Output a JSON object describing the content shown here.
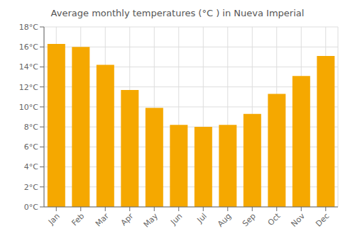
{
  "chart_data": {
    "type": "bar",
    "title": "Average monthly temperatures (°C ) in Nueva Imperial",
    "categories": [
      "Jan",
      "Feb",
      "Mar",
      "Apr",
      "May",
      "Jun",
      "Jul",
      "Aug",
      "Sep",
      "Oct",
      "Nov",
      "Dec"
    ],
    "values": [
      16.3,
      16.0,
      14.2,
      11.7,
      9.9,
      8.2,
      8.0,
      8.2,
      9.3,
      11.3,
      13.1,
      15.1
    ],
    "color": "#F5A800",
    "ylim": [
      0,
      18
    ],
    "yticks": [
      {
        "value": 0,
        "label": "0°C"
      },
      {
        "value": 2,
        "label": "2°C"
      },
      {
        "value": 4,
        "label": "4°C"
      },
      {
        "value": 6,
        "label": "6°C"
      },
      {
        "value": 8,
        "label": "8°C"
      },
      {
        "value": 10,
        "label": "10°C"
      },
      {
        "value": 12,
        "label": "12°C"
      },
      {
        "value": 14,
        "label": "14°C"
      },
      {
        "value": 16,
        "label": "16°C"
      },
      {
        "value": 18,
        "label": "18°C"
      }
    ],
    "grid": true
  }
}
